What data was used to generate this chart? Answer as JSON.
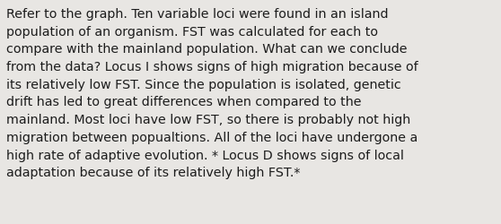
{
  "background_color": "#e8e6e3",
  "text_color": "#1c1c1c",
  "font_size": 10.3,
  "font_family": "DejaVu Sans",
  "lines": [
    "Refer to the graph. Ten variable loci were found in an island",
    "population of an organism. FST was calculated for each to",
    "compare with the mainland population. What can we conclude",
    "from the data? Locus I shows signs of high migration because of",
    "its relatively low FST. Since the population is isolated, genetic",
    "drift has led to great differences when compared to the",
    "mainland. Most loci have low FST, so there is probably not high",
    "migration between popualtions. All of the loci have undergone a",
    "high rate of adaptive evolution. * Locus D shows signs of local",
    "adaptation because of its relatively high FST.*"
  ]
}
